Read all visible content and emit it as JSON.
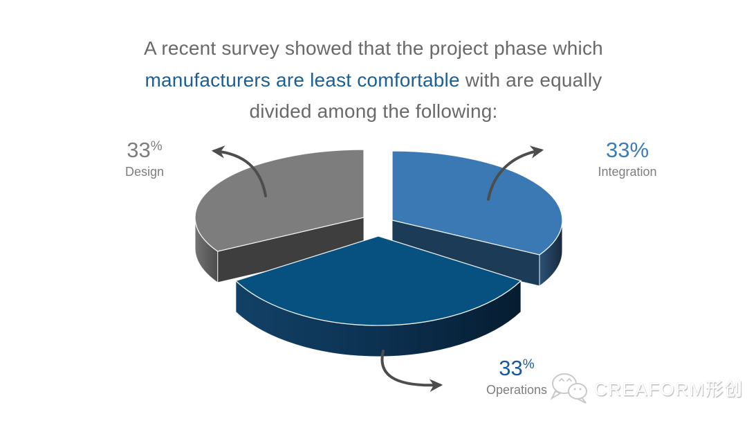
{
  "title": {
    "line1": "A recent survey showed that the project phase which",
    "line2_highlight": "manufacturers are least comfortable",
    "line2_rest": " with are equally",
    "line3": "divided among the following:",
    "text_color": "#696969",
    "highlight_color": "#1b5f96"
  },
  "chart_data": {
    "type": "pie",
    "three_d": true,
    "exploded": true,
    "start_angle_deg": -90,
    "direction": "clockwise",
    "units": "percent",
    "title": "A recent survey showed that the project phase which manufacturers are least comfortable with are equally divided among the following:",
    "legend_position": "callouts-with-curved-arrows",
    "arrow_color": "#4d4d4d",
    "edge_color": "rgba(255,255,255,0.9)",
    "slices": [
      {
        "label": "Integration",
        "value": 33,
        "display_value": "33",
        "percent_sign": "%",
        "percent_superscript": false,
        "top_color": "#3a79b3",
        "cut_color": "#1c3b57",
        "side_gradient": [
          "#2b5278",
          "#18293c"
        ],
        "label_value_color": "#3d7cb8",
        "label_text_color": "#7d7d7d"
      },
      {
        "label": "Operations",
        "value": 33,
        "display_value": "33",
        "percent_sign": "%",
        "percent_superscript": true,
        "top_color": "#06517f",
        "cut_color": "#0c3151",
        "side_gradient": [
          "#124166",
          "#0c3151",
          "#061c30"
        ],
        "label_value_color": "#17599c",
        "label_text_color": "#7d7d7d"
      },
      {
        "label": "Design",
        "value": 33,
        "display_value": "33",
        "percent_sign": "%",
        "percent_superscript": true,
        "top_color": "#7d7d7d",
        "cut_color": "#3e3e3e",
        "side_gradient": [
          "#747474",
          "#4c4c4c"
        ],
        "label_value_color": "#7d7d7d",
        "label_text_color": "#7d7d7d"
      }
    ]
  },
  "watermark": {
    "brand": "CREAFORM形创",
    "icon": "wechat-icon"
  }
}
